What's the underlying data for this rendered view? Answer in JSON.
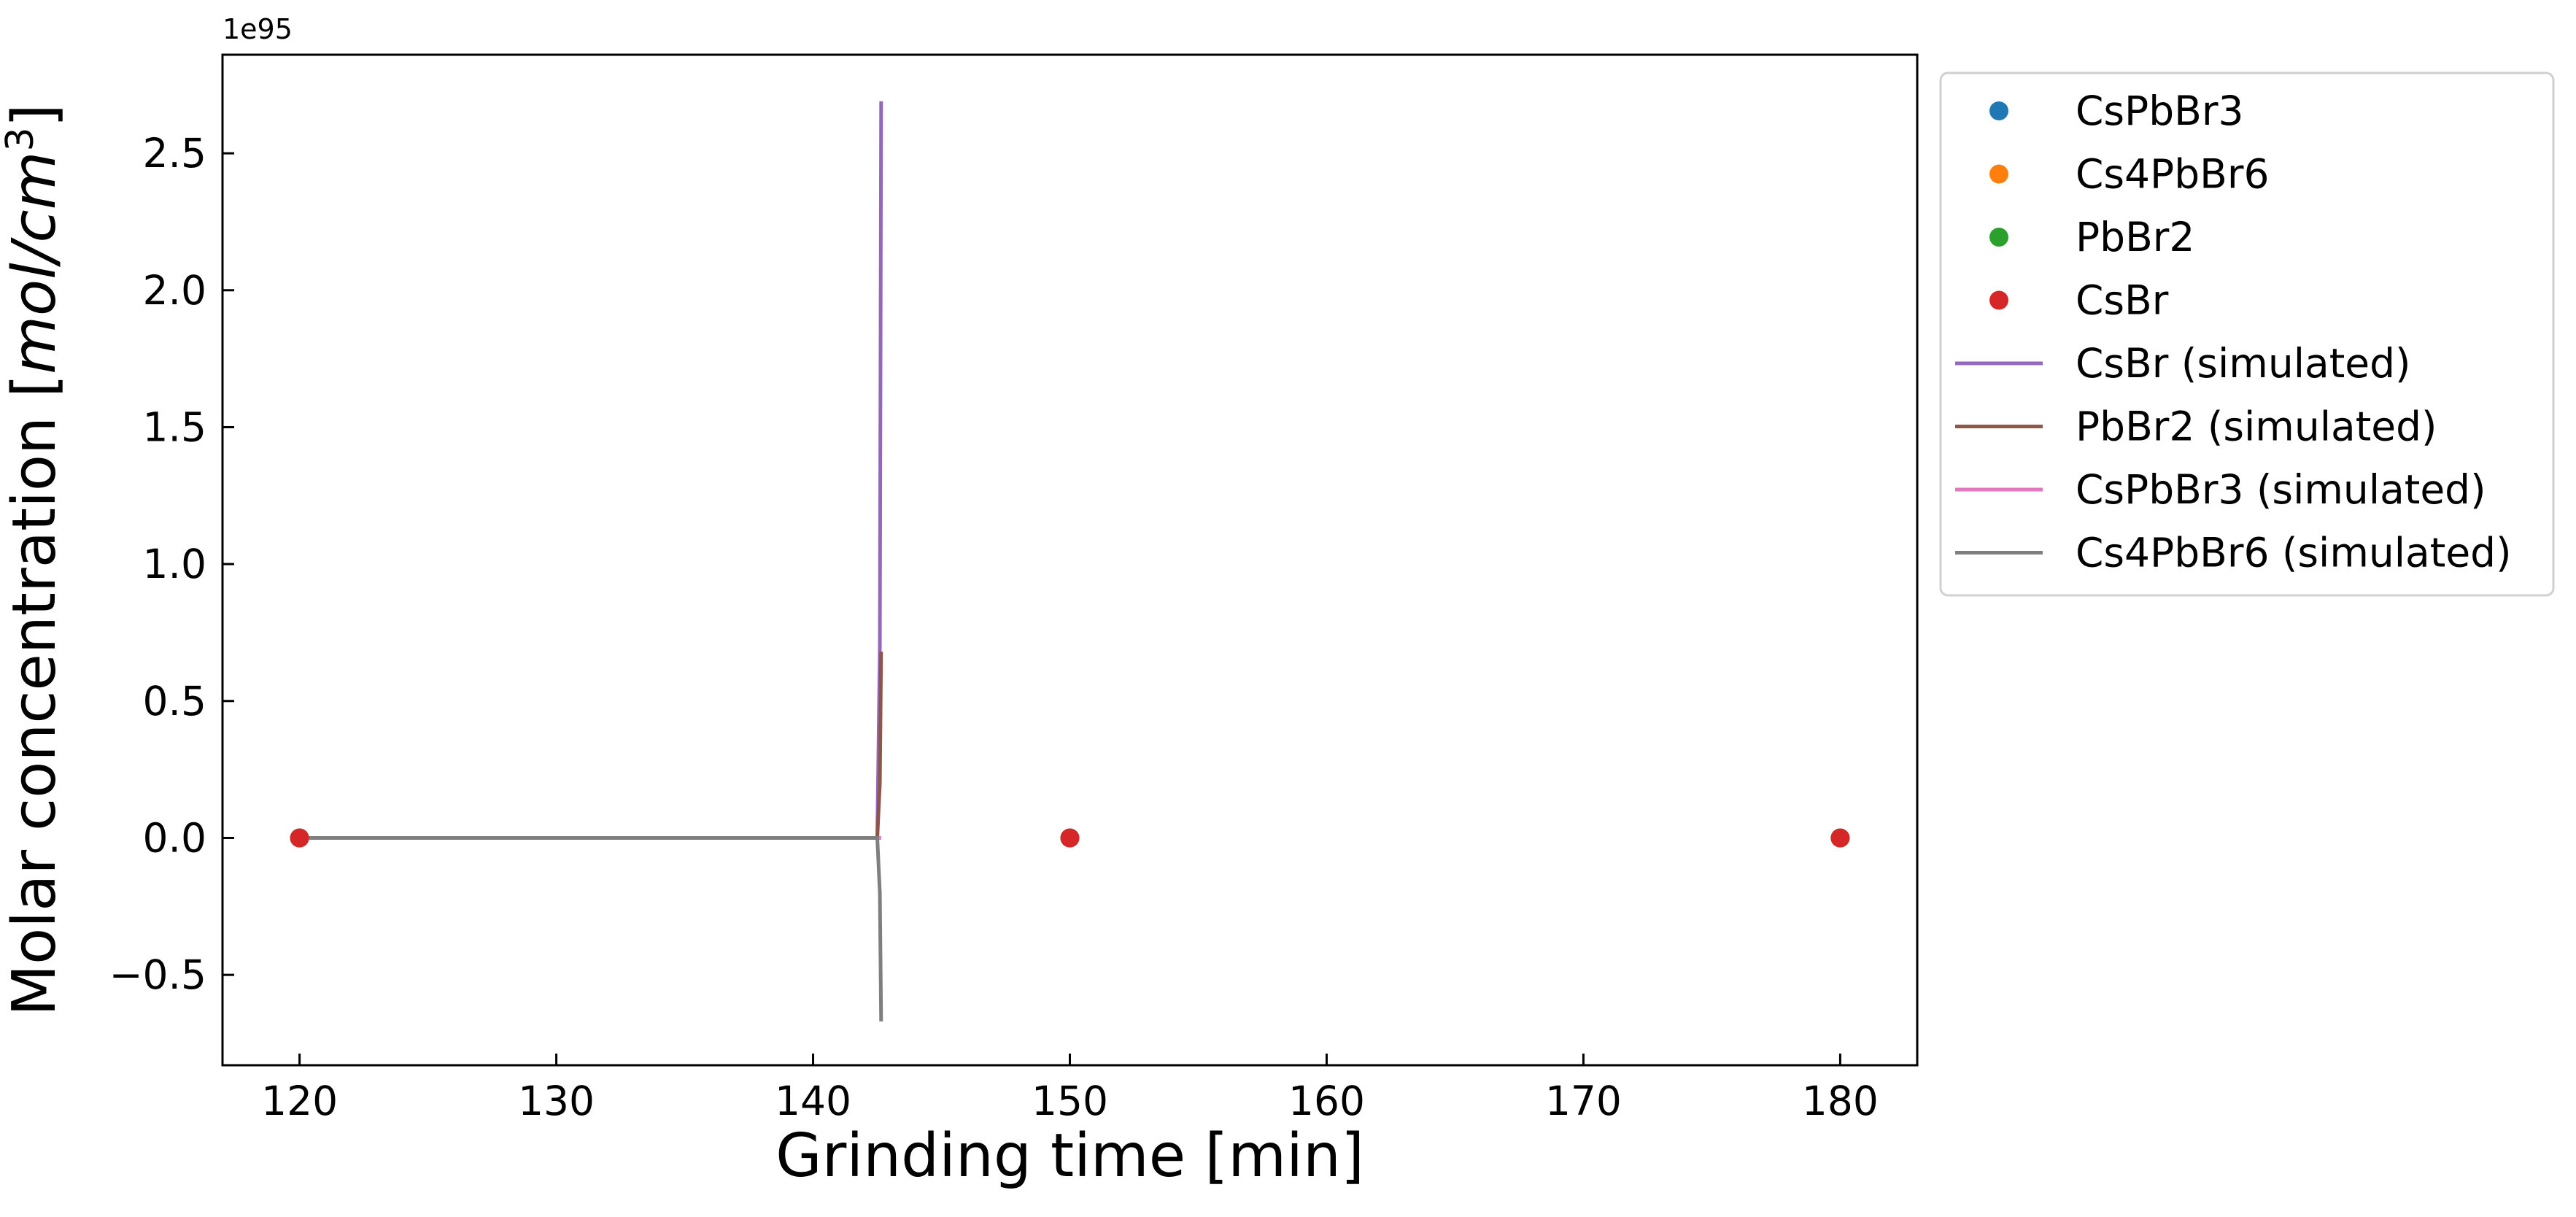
{
  "chart_data": {
    "type": "scatter",
    "xlabel": "Grinding time [min]",
    "ylabel_text": "Molar concentration [",
    "ylabel_math": "mol/cm",
    "ylabel_exp": "3",
    "ylabel_close": "]",
    "y_offset_label": "1e95",
    "xlim": [
      117,
      183
    ],
    "ylim": [
      -0.83,
      2.86
    ],
    "xticks": [
      120,
      130,
      140,
      150,
      160,
      170,
      180
    ],
    "yticks": [
      -0.5,
      0.0,
      0.5,
      1.0,
      1.5,
      2.0,
      2.5
    ],
    "ytick_labels": [
      "−0.5",
      "0.0",
      "0.5",
      "1.0",
      "1.5",
      "2.0",
      "2.5"
    ],
    "legend_position": "outside-top-right",
    "grid": false,
    "series": [
      {
        "name": "CsPbBr3",
        "kind": "scatter",
        "color": "#1f77b4",
        "x": [
          120,
          150,
          180
        ],
        "y": [
          0,
          0,
          0
        ]
      },
      {
        "name": "Cs4PbBr6",
        "kind": "scatter",
        "color": "#ff7f0e",
        "x": [
          120,
          150,
          180
        ],
        "y": [
          0,
          0,
          0
        ]
      },
      {
        "name": "PbBr2",
        "kind": "scatter",
        "color": "#2ca02c",
        "x": [
          120,
          150,
          180
        ],
        "y": [
          0,
          0,
          0
        ]
      },
      {
        "name": "CsBr",
        "kind": "scatter",
        "color": "#d62728",
        "x": [
          120,
          150,
          180
        ],
        "y": [
          0,
          0,
          0
        ]
      },
      {
        "name": "CsBr (simulated)",
        "kind": "line",
        "color": "#9467bd",
        "x": [
          120,
          142.5,
          142.6,
          142.65
        ],
        "y": [
          0,
          0,
          0.7,
          2.69
        ]
      },
      {
        "name": "PbBr2 (simulated)",
        "kind": "line",
        "color": "#8c564b",
        "x": [
          120,
          142.5,
          142.6,
          142.65
        ],
        "y": [
          0,
          0,
          0.2,
          0.68
        ]
      },
      {
        "name": "CsPbBr3 (simulated)",
        "kind": "line",
        "color": "#e377c2",
        "x": [
          120,
          142.5,
          142.65
        ],
        "y": [
          0,
          0,
          0
        ]
      },
      {
        "name": "Cs4PbBr6 (simulated)",
        "kind": "line",
        "color": "#7f7f7f",
        "x": [
          120,
          142.5,
          142.6,
          142.65
        ],
        "y": [
          0,
          0,
          -0.2,
          -0.67
        ]
      }
    ]
  }
}
